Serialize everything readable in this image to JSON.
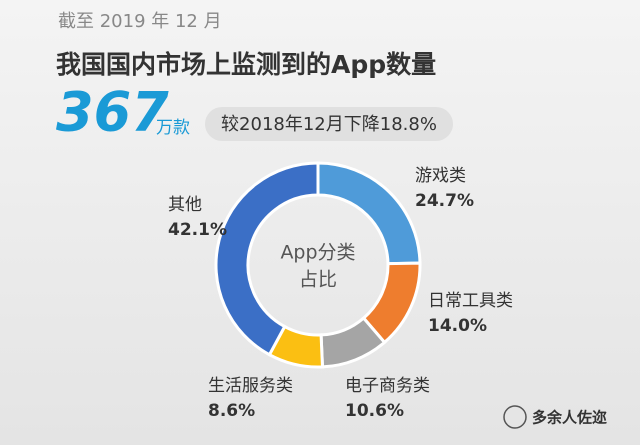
{
  "header": {
    "date": "截至 2019 年 12 月",
    "title": "我国国内市场上监测到的App数量"
  },
  "stat": {
    "number": 367,
    "unit": "万款",
    "change": "较2018年12月下降18.8%"
  },
  "chart_data": {
    "type": "donut",
    "center_label": [
      "App分类",
      "占比"
    ],
    "categories": [
      "游戏类",
      "日常工具类",
      "电子商务类",
      "生活服务类",
      "其他"
    ],
    "values": [
      24.7,
      14.0,
      10.6,
      8.6,
      42.1
    ],
    "value_labels": [
      "24.7%",
      "14.0%",
      "10.6%",
      "8.6%",
      "42.1%"
    ],
    "colors": [
      "#4f9bd9",
      "#ee7d2e",
      "#a5a5a5",
      "#fbbf12",
      "#3b6fc6"
    ]
  },
  "footer": {
    "source": "多余人佐迩"
  }
}
